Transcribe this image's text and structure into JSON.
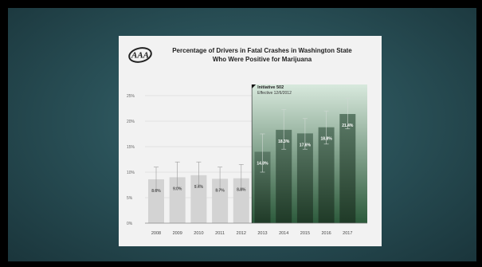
{
  "logo": {
    "text": "AAA",
    "icon": "aaa-logo"
  },
  "chart_data": {
    "type": "bar",
    "title": [
      "Percentage of Drivers in Fatal Crashes in Washington State",
      "Who Were Positive for Marijuana"
    ],
    "categories": [
      "2008",
      "2009",
      "2010",
      "2011",
      "2012",
      "2013",
      "2014",
      "2015",
      "2016",
      "2017"
    ],
    "values": [
      8.6,
      9.0,
      9.4,
      8.7,
      8.8,
      14.0,
      18.3,
      17.6,
      18.8,
      21.4
    ],
    "value_labels": [
      "8.6%",
      "9.0%",
      "9.4%",
      "8.7%",
      "8.8%",
      "14.0%",
      "18.3%",
      "17.6%",
      "18.8%",
      "21.4%"
    ],
    "error_low": [
      6.5,
      7.0,
      7.5,
      6.5,
      6.5,
      10.0,
      14.5,
      14.5,
      15.5,
      18.5
    ],
    "error_high": [
      11.0,
      12.0,
      12.0,
      11.0,
      11.5,
      17.5,
      22.3,
      20.5,
      22.0,
      24.5
    ],
    "ylim": [
      0,
      25
    ],
    "yticks": [
      0,
      5,
      10,
      15,
      20,
      25
    ],
    "ytick_labels": [
      "0%",
      "5%",
      "10%",
      "15%",
      "20%",
      "25%"
    ],
    "grid": true,
    "colors": {
      "before": "#d3d3d3",
      "after_top": "#5c7a67",
      "after_bottom": "#1f3a27",
      "shade_top": "#d8e9dd",
      "shade_bottom": "#2c5a3b"
    },
    "annotation": {
      "title": "Initiative 502",
      "subtitle": "Effective 12/6/2012",
      "starts_before_index": 5
    }
  }
}
